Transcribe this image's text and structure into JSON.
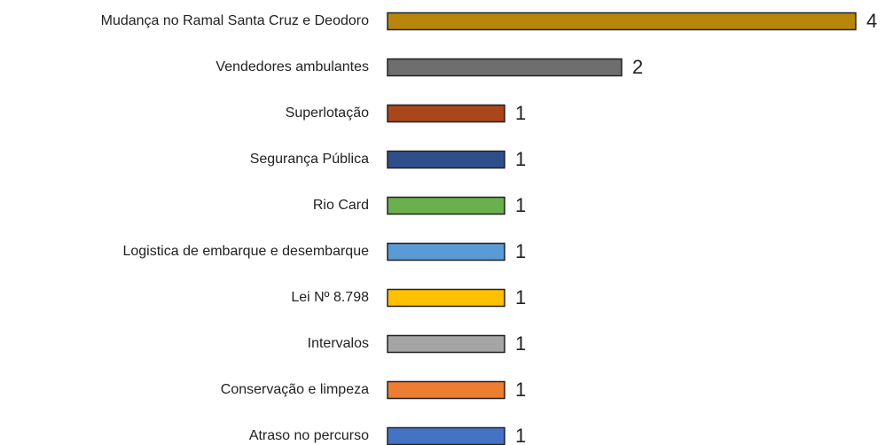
{
  "chart_data": {
    "type": "barh",
    "categories": [
      "Mudança no Ramal Santa Cruz e Deodoro",
      "Vendedores ambulantes",
      "Superlotação",
      "Segurança Pública",
      "Rio Card",
      "Logistica de embarque e desembarque",
      "Lei Nº 8.798",
      "Intervalos",
      "Conservação e limpeza",
      "Atraso no percurso"
    ],
    "values": [
      4,
      2,
      1,
      1,
      1,
      1,
      1,
      1,
      1,
      1
    ],
    "colors": [
      "#b8860b",
      "#6e6e6e",
      "#a9461a",
      "#2f4f8c",
      "#6ab04c",
      "#5b9bd5",
      "#ffc000",
      "#a5a5a5",
      "#ed7d31",
      "#4472c4"
    ]
  }
}
